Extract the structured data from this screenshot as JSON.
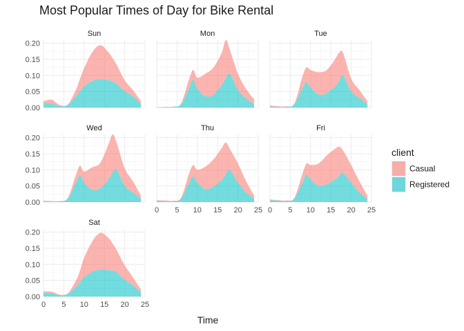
{
  "chart_data": {
    "type": "area",
    "title": "Most Popular Times of Day for Bike Rental",
    "xlabel": "Time",
    "ylabel": "",
    "xlim": [
      0,
      24
    ],
    "ylim": [
      0,
      0.21
    ],
    "x_ticks": [
      0,
      5,
      10,
      15,
      20,
      25
    ],
    "y_ticks": [
      0,
      0.05,
      0.1,
      0.15,
      0.2
    ],
    "y_tick_labels": [
      "0.00",
      "0.05",
      "0.10",
      "0.15",
      "0.20"
    ],
    "grid": true,
    "stacked": true,
    "legend": {
      "title": "client",
      "position": "right",
      "entries": [
        "Casual",
        "Registered"
      ]
    },
    "colors": {
      "Casual": "#F8766D",
      "Registered": "#00BFC4"
    },
    "fill_opacity": 0.55,
    "x": [
      0,
      2,
      4,
      6,
      8,
      9,
      10,
      12,
      14,
      16,
      17,
      18,
      20,
      22,
      24
    ],
    "panels": [
      {
        "name": "Sun",
        "series": [
          {
            "name": "Casual",
            "values": [
              0.006,
              0.012,
              0.004,
              0.002,
              0.021,
              0.04,
              0.057,
              0.09,
              0.106,
              0.087,
              0.074,
              0.06,
              0.034,
              0.02,
              0.01
            ]
          },
          {
            "name": "Registered",
            "values": [
              0.014,
              0.012,
              0.004,
              0.008,
              0.035,
              0.05,
              0.065,
              0.082,
              0.088,
              0.085,
              0.08,
              0.073,
              0.051,
              0.035,
              0.01
            ]
          }
        ]
      },
      {
        "name": "Mon",
        "series": [
          {
            "name": "Casual",
            "values": [
              0,
              0.001,
              0.001,
              0.003,
              0.03,
              0.03,
              0.035,
              0.07,
              0.085,
              0.1,
              0.12,
              0.075,
              0.05,
              0.03,
              0.015
            ]
          },
          {
            "name": "Registered",
            "values": [
              0.001,
              0.001,
              0.002,
              0.01,
              0.06,
              0.087,
              0.058,
              0.035,
              0.04,
              0.07,
              0.09,
              0.105,
              0.055,
              0.028,
              0.01
            ]
          }
        ]
      },
      {
        "name": "Tue",
        "series": [
          {
            "name": "Casual",
            "values": [
              0.004,
              0.002,
              0.002,
              0.003,
              0.037,
              0.047,
              0.055,
              0.07,
              0.072,
              0.085,
              0.09,
              0.07,
              0.04,
              0.025,
              0.01
            ]
          },
          {
            "name": "Registered",
            "values": [
              0.003,
              0.002,
              0.002,
              0.01,
              0.06,
              0.078,
              0.062,
              0.04,
              0.045,
              0.065,
              0.08,
              0.1,
              0.05,
              0.03,
              0.01
            ]
          }
        ]
      },
      {
        "name": "Wed",
        "series": [
          {
            "name": "Casual",
            "values": [
              0.002,
              0.001,
              0.001,
              0.003,
              0.025,
              0.03,
              0.035,
              0.07,
              0.08,
              0.11,
              0.12,
              0.085,
              0.055,
              0.035,
              0.01
            ]
          },
          {
            "name": "Registered",
            "values": [
              0.002,
              0.002,
              0.002,
              0.01,
              0.06,
              0.083,
              0.06,
              0.038,
              0.042,
              0.07,
              0.09,
              0.1,
              0.05,
              0.03,
              0.01
            ]
          }
        ]
      },
      {
        "name": "Thu",
        "series": [
          {
            "name": "Casual",
            "values": [
              0.002,
              0.002,
              0.002,
              0.004,
              0.03,
              0.035,
              0.04,
              0.07,
              0.085,
              0.1,
              0.1,
              0.065,
              0.06,
              0.035,
              0.01
            ]
          },
          {
            "name": "Registered",
            "values": [
              0.004,
              0.003,
              0.002,
              0.01,
              0.06,
              0.08,
              0.06,
              0.04,
              0.048,
              0.068,
              0.085,
              0.1,
              0.06,
              0.03,
              0.01
            ]
          }
        ]
      },
      {
        "name": "Fri",
        "series": [
          {
            "name": "Casual",
            "values": [
              0.002,
              0.002,
              0.002,
              0.003,
              0.028,
              0.035,
              0.045,
              0.07,
              0.09,
              0.095,
              0.092,
              0.07,
              0.055,
              0.035,
              0.01
            ]
          },
          {
            "name": "Registered",
            "values": [
              0.006,
              0.004,
              0.003,
              0.01,
              0.06,
              0.085,
              0.07,
              0.05,
              0.055,
              0.07,
              0.08,
              0.09,
              0.06,
              0.03,
              0.01
            ]
          }
        ]
      },
      {
        "name": "Sat",
        "series": [
          {
            "name": "Casual",
            "values": [
              0.004,
              0.005,
              0.002,
              0.002,
              0.02,
              0.038,
              0.06,
              0.095,
              0.115,
              0.1,
              0.085,
              0.07,
              0.045,
              0.025,
              0.01
            ]
          },
          {
            "name": "Registered",
            "values": [
              0.012,
              0.01,
              0.004,
              0.008,
              0.03,
              0.043,
              0.06,
              0.076,
              0.083,
              0.082,
              0.08,
              0.075,
              0.052,
              0.035,
              0.012
            ]
          }
        ]
      }
    ]
  }
}
